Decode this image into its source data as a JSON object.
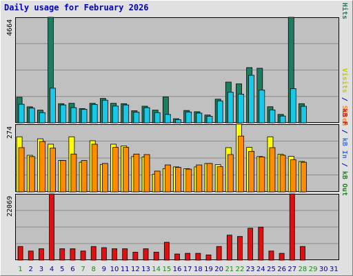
{
  "title": "Daily usage for February 2026",
  "colors": {
    "hits": "#1a7f60",
    "files": "#18c8e8",
    "sites": "#ff8c00",
    "visits": "#ffff00",
    "kbytes": "#e01010",
    "panel_bg": "#c0c0c0",
    "weekend": "#1a8a1a",
    "weekday": "#000080",
    "axis_title": "#0000c0"
  },
  "chart_data": [
    {
      "type": "bar",
      "panel": "hits-files",
      "ymax_label": "4664",
      "ymax": 4664,
      "legend": [
        {
          "text": "Pages",
          "color": "#18c8e8"
        },
        {
          "text": " / ",
          "color": "#0000c0"
        },
        {
          "text": "Files",
          "color": "#0000c0"
        },
        {
          "text": " / ",
          "color": "#0000c0"
        },
        {
          "text": "Hits",
          "color": "#1a7f60"
        }
      ],
      "categories": [
        "1",
        "2",
        "3",
        "4",
        "5",
        "6",
        "7",
        "8",
        "9",
        "10",
        "11",
        "12",
        "13",
        "14",
        "15",
        "16",
        "17",
        "18",
        "19",
        "20",
        "21",
        "22",
        "23",
        "24",
        "25",
        "26",
        "27",
        "28",
        "29",
        "30",
        "31"
      ],
      "series": [
        {
          "key": "hits",
          "values": [
            1130,
            707,
            560,
            4664,
            845,
            862,
            630,
            862,
            1077,
            862,
            845,
            533,
            733,
            560,
            1143,
            181,
            545,
            490,
            345,
            1045,
            1800,
            1720,
            2440,
            2410,
            710,
            372,
            4664,
            845,
            0,
            0,
            0
          ]
        },
        {
          "key": "files",
          "values": [
            820,
            650,
            450,
            1530,
            790,
            670,
            600,
            810,
            1000,
            740,
            790,
            470,
            670,
            450,
            370,
            140,
            480,
            430,
            290,
            970,
            1350,
            1270,
            2100,
            1450,
            570,
            300,
            1510,
            730,
            0,
            0,
            0
          ]
        }
      ]
    },
    {
      "type": "bar",
      "panel": "visits-sites",
      "ymax_label": "274",
      "ymax": 274,
      "legend": [
        {
          "text": "Visits",
          "color": "#c8c800"
        },
        {
          "text": " / ",
          "color": "#0000c0"
        },
        {
          "text": "Sites",
          "color": "#ff8c00"
        }
      ],
      "categories": [
        "1",
        "2",
        "3",
        "4",
        "5",
        "6",
        "7",
        "8",
        "9",
        "10",
        "11",
        "12",
        "13",
        "14",
        "15",
        "16",
        "17",
        "18",
        "19",
        "20",
        "21",
        "22",
        "23",
        "24",
        "25",
        "26",
        "27",
        "28",
        "29",
        "30",
        "31"
      ],
      "series": [
        {
          "key": "visits",
          "values": [
            223,
            148,
            215,
            193,
            127,
            223,
            120,
            207,
            111,
            193,
            186,
            143,
            141,
            71,
            94,
            101,
            94,
            101,
            115,
            110,
            179,
            274,
            180,
            143,
            223,
            152,
            144,
            123,
            0,
            0,
            0
          ]
        },
        {
          "key": "sites",
          "values": [
            179,
            143,
            204,
            177,
            127,
            153,
            127,
            193,
            115,
            180,
            180,
            153,
            151,
            84,
            109,
            99,
            92,
            109,
            115,
            102,
            151,
            226,
            164,
            141,
            179,
            148,
            130,
            120,
            0,
            0,
            0
          ]
        }
      ]
    },
    {
      "type": "bar",
      "panel": "kbytes",
      "ymax_label": "22069",
      "ymax": 22069,
      "legend": [
        {
          "text": "kB F",
          "color": "#e01010"
        },
        {
          "text": " / ",
          "color": "#0000c0"
        },
        {
          "text": "kB In",
          "color": "#3070ff"
        },
        {
          "text": " / ",
          "color": "#0000c0"
        },
        {
          "text": "kB Out",
          "color": "#1a8a1a"
        }
      ],
      "categories": [
        "1",
        "2",
        "3",
        "4",
        "5",
        "6",
        "7",
        "8",
        "9",
        "10",
        "11",
        "12",
        "13",
        "14",
        "15",
        "16",
        "17",
        "18",
        "19",
        "20",
        "21",
        "22",
        "23",
        "24",
        "25",
        "26",
        "27",
        "28",
        "29",
        "30",
        "31"
      ],
      "series": [
        {
          "key": "kbytes",
          "values": [
            4550,
            3040,
            3800,
            22069,
            3800,
            3800,
            3040,
            4550,
            4160,
            3800,
            3800,
            2660,
            3800,
            2660,
            5960,
            2050,
            2270,
            2270,
            1740,
            4550,
            8340,
            7890,
            10630,
            11000,
            3040,
            2270,
            22069,
            4550,
            0,
            0,
            0
          ]
        }
      ]
    }
  ]
}
